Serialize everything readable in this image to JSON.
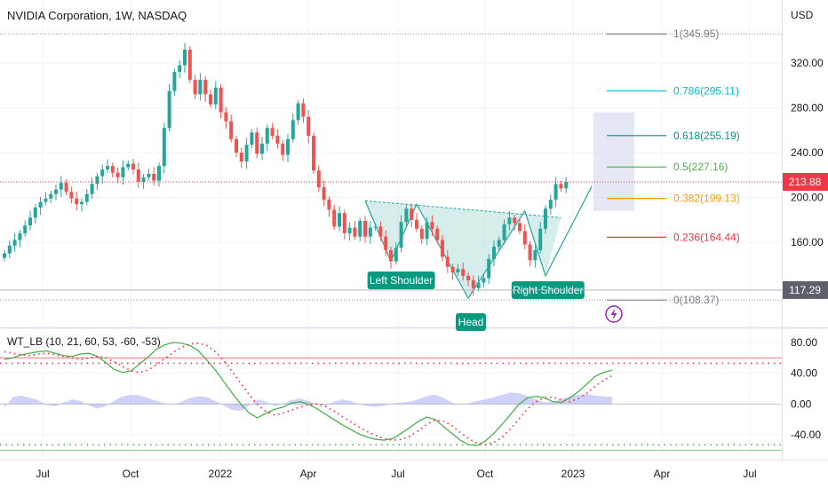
{
  "header": {
    "title": "NVIDIA Corporation, 1W, NASDAQ",
    "currency": "USD"
  },
  "colors": {
    "up": "#26a69a",
    "down": "#ef5350",
    "grid": "#f0f3fa",
    "pattern_fill": "#b2dfdb",
    "pattern_line": "#26a69a",
    "wt1": "#4caf50",
    "wt2": "#f23645",
    "hist": "#7b7ff0",
    "price_badge": "#f23645",
    "ref_badge": "#5d606b"
  },
  "chart_data": [
    {
      "type": "candlestick",
      "title": "NVIDIA Corporation, 1W, NASDAQ",
      "xlabel": "",
      "ylabel": "USD",
      "ylim": [
        95,
        370
      ],
      "x_ticks": [
        "Jul",
        "Oct",
        "2022",
        "Apr",
        "Jul",
        "Oct",
        "2023",
        "Apr",
        "Jul"
      ],
      "y_ticks": [
        "320.00",
        "280.00",
        "240.00",
        "200.00",
        "160.00"
      ],
      "last_price": "213.88",
      "ref_price": "117.29",
      "closes": [
        150,
        157,
        162,
        168,
        175,
        182,
        191,
        196,
        199,
        203,
        207,
        213,
        205,
        199,
        194,
        196,
        203,
        212,
        219,
        225,
        228,
        222,
        218,
        227,
        230,
        225,
        214,
        218,
        221,
        215,
        228,
        262,
        295,
        312,
        318,
        332,
        305,
        292,
        305,
        292,
        283,
        298,
        276,
        268,
        252,
        240,
        232,
        247,
        258,
        239,
        248,
        262,
        255,
        248,
        238,
        252,
        269,
        284,
        272,
        255,
        224,
        209,
        198,
        189,
        174,
        186,
        168,
        173,
        165,
        179,
        165,
        173,
        174,
        165,
        153,
        143,
        155,
        178,
        190,
        180,
        172,
        163,
        178,
        172,
        162,
        147,
        138,
        133,
        136,
        130,
        126,
        119,
        124,
        128,
        145,
        156,
        162,
        176,
        182,
        177,
        170,
        158,
        144,
        153,
        172,
        190,
        198,
        212,
        208,
        213.88
      ],
      "fib_levels": [
        {
          "label": "1(345.95)",
          "value": 345.95,
          "color": "#787b86"
        },
        {
          "label": "0.786(295.11)",
          "value": 295.11,
          "color": "#00bcd4"
        },
        {
          "label": "0.618(255.19)",
          "value": 255.19,
          "color": "#009688"
        },
        {
          "label": "0.5(227.16)",
          "value": 227.16,
          "color": "#4caf50"
        },
        {
          "label": "0.382(199.13)",
          "value": 199.13,
          "color": "#ff9800"
        },
        {
          "label": "0.236(164.44)",
          "value": 164.44,
          "color": "#f23645"
        },
        {
          "label": "0(108.37)",
          "value": 108.37,
          "color": "#787b86"
        }
      ],
      "annotations": [
        "Left Shoulder",
        "Head",
        "Right Shoulder"
      ],
      "pattern_points": [
        {
          "x": 70,
          "y": 197
        },
        {
          "x": 75,
          "y": 143
        },
        {
          "x": 80,
          "y": 194
        },
        {
          "x": 90,
          "y": 110
        },
        {
          "x": 101,
          "y": 188
        },
        {
          "x": 105,
          "y": 130
        },
        {
          "x": 114,
          "y": 210
        }
      ],
      "neckline": [
        {
          "x": 70,
          "y": 197
        },
        {
          "x": 108,
          "y": 182
        }
      ]
    },
    {
      "type": "line",
      "title": "WT_LB (10, 21, 60, 53, -60, -53)",
      "ylim": [
        -68,
        98
      ],
      "y_ticks": [
        "80.00",
        "40.00",
        "0.00",
        "-40.00"
      ],
      "levels": [
        60,
        53,
        -60,
        -53
      ],
      "series": [
        {
          "name": "",
          "values": [
            58,
            60,
            64,
            66,
            68,
            69,
            66,
            63,
            62,
            65,
            66,
            62,
            54,
            45,
            41,
            43,
            52,
            61,
            71,
            77,
            80,
            79,
            76,
            69,
            57,
            44,
            29,
            14,
            0,
            -12,
            -18,
            -12,
            -7,
            -4,
            1,
            3,
            0,
            -6,
            -13,
            -20,
            -27,
            -33,
            -39,
            -43,
            -46,
            -47,
            -45,
            -38,
            -31,
            -23,
            -17,
            -20,
            -29,
            -38,
            -47,
            -53,
            -54,
            -48,
            -38,
            -26,
            -13,
            0,
            8,
            10,
            8,
            3,
            2,
            8,
            16,
            26,
            36,
            41,
            44
          ]
        },
        {
          "name": "",
          "values": [
            68,
            66,
            64,
            63,
            65,
            66,
            64,
            62,
            60,
            58,
            60,
            62,
            60,
            55,
            49,
            43,
            41,
            44,
            51,
            59,
            67,
            74,
            78,
            79,
            76,
            68,
            56,
            42,
            27,
            12,
            -1,
            -10,
            -14,
            -12,
            -8,
            -4,
            -1,
            0,
            -3,
            -9,
            -16,
            -23,
            -30,
            -36,
            -41,
            -45,
            -47,
            -46,
            -42,
            -35,
            -27,
            -21,
            -22,
            -28,
            -37,
            -45,
            -51,
            -53,
            -50,
            -43,
            -32,
            -19,
            -6,
            3,
            8,
            9,
            5,
            3,
            7,
            14,
            23,
            31,
            37
          ]
        },
        {
          "name": "",
          "values": [
            -5,
            9,
            11,
            8,
            5,
            -1,
            -3,
            2,
            6,
            4,
            -2,
            -6,
            -3,
            4,
            10,
            12,
            11,
            8,
            4,
            1,
            -1,
            3,
            8,
            10,
            9,
            4,
            -2,
            -8,
            -9,
            -2,
            6,
            3,
            -3,
            0,
            5,
            7,
            4,
            0,
            -2,
            3,
            6,
            4,
            0,
            -3,
            -4,
            -2,
            1,
            2,
            3,
            6,
            10,
            12,
            8,
            2,
            -1,
            1,
            4,
            6,
            9,
            12,
            15,
            14,
            10,
            6,
            2,
            3,
            7,
            10,
            12,
            13,
            11,
            10,
            9
          ]
        }
      ],
      "x_ticks": [
        "Jul",
        "Oct",
        "2022",
        "Apr",
        "Jul",
        "Oct",
        "2023",
        "Apr",
        "Jul"
      ]
    }
  ]
}
